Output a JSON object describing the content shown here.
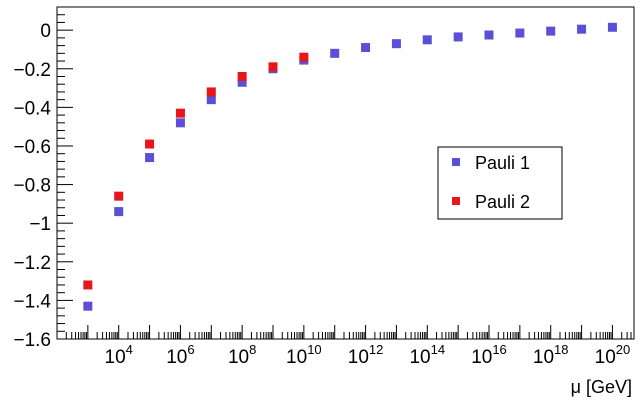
{
  "chart_data": {
    "type": "scatter",
    "title": "",
    "xlabel": "μ [GeV]",
    "ylabel": "",
    "xscale": "log",
    "xlim": [
      100,
      5e+20
    ],
    "ylim": [
      -1.6,
      0.12
    ],
    "x_ticks": [
      {
        "value": 10000.0,
        "base": "10",
        "exp": "4"
      },
      {
        "value": 1000000.0,
        "base": "10",
        "exp": "6"
      },
      {
        "value": 100000000.0,
        "base": "10",
        "exp": "8"
      },
      {
        "value": 10000000000.0,
        "base": "10",
        "exp": "10"
      },
      {
        "value": 1000000000000.0,
        "base": "10",
        "exp": "12"
      },
      {
        "value": 100000000000000.0,
        "base": "10",
        "exp": "14"
      },
      {
        "value": 1e+16,
        "base": "10",
        "exp": "16"
      },
      {
        "value": 1e+18,
        "base": "10",
        "exp": "18"
      },
      {
        "value": 1e+20,
        "base": "10",
        "exp": "20"
      }
    ],
    "y_ticks": [
      {
        "value": 0,
        "label": "0"
      },
      {
        "value": -0.2,
        "label": "−0.2"
      },
      {
        "value": -0.4,
        "label": "−0.4"
      },
      {
        "value": -0.6,
        "label": "−0.6"
      },
      {
        "value": -0.8,
        "label": "−0.8"
      },
      {
        "value": -1.0,
        "label": "−1"
      },
      {
        "value": -1.2,
        "label": "−1.2"
      },
      {
        "value": -1.4,
        "label": "−1.4"
      },
      {
        "value": -1.6,
        "label": "−1.6"
      }
    ],
    "grid": false,
    "legend_position": "right-middle",
    "series": [
      {
        "name": "Pauli 1",
        "color": "#5b4fd6",
        "x": [
          1000.0,
          10000.0,
          100000.0,
          1000000.0,
          10000000.0,
          100000000.0,
          1000000000.0,
          10000000000.0,
          100000000000.0,
          1000000000000.0,
          10000000000000.0,
          100000000000000.0,
          1000000000000000.0,
          1e+16,
          1e+17,
          1e+18,
          1e+19,
          1e+20
        ],
        "y": [
          -1.43,
          -0.94,
          -0.66,
          -0.48,
          -0.36,
          -0.27,
          -0.2,
          -0.155,
          -0.12,
          -0.09,
          -0.07,
          -0.05,
          -0.035,
          -0.025,
          -0.015,
          -0.005,
          0.005,
          0.015
        ]
      },
      {
        "name": "Pauli 2",
        "color": "#e8151b",
        "x": [
          1000.0,
          10000.0,
          100000.0,
          1000000.0,
          10000000.0,
          100000000.0,
          1000000000.0,
          10000000000.0
        ],
        "y": [
          -1.32,
          -0.86,
          -0.59,
          -0.43,
          -0.32,
          -0.24,
          -0.19,
          -0.14
        ]
      }
    ]
  }
}
